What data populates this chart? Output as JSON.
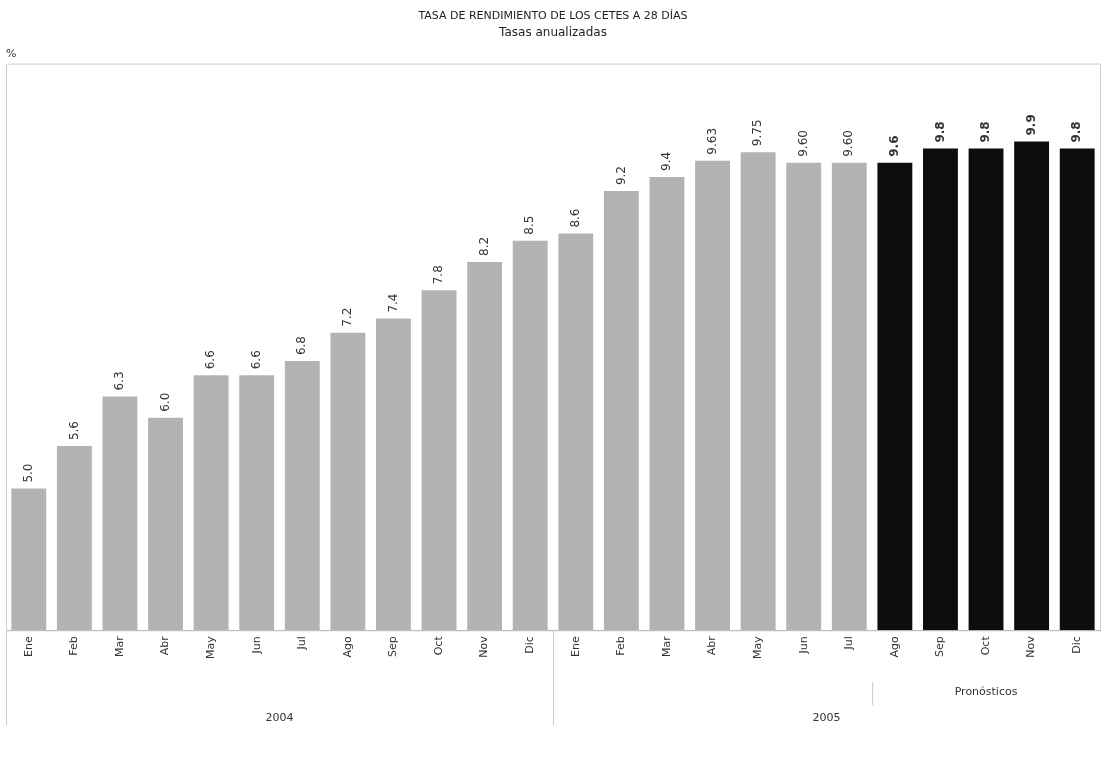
{
  "chart_data": {
    "type": "bar",
    "title": "TASA DE RENDIMIENTO DE LOS CETES A 28 DÍAS",
    "subtitle": "Tasas anualizadas",
    "ylabel": "%",
    "categories": [
      "Ene",
      "Feb",
      "Mar",
      "Abr",
      "May",
      "Jun",
      "Jul",
      "Ago",
      "Sep",
      "Oct",
      "Nov",
      "Dic",
      "Ene",
      "Feb",
      "Mar",
      "Abr",
      "May",
      "Jun",
      "Jul",
      "Ago",
      "Sep",
      "Oct",
      "Nov",
      "Dic"
    ],
    "values": [
      5.0,
      5.6,
      6.3,
      6.0,
      6.6,
      6.6,
      6.8,
      7.2,
      7.4,
      7.8,
      8.2,
      8.5,
      8.6,
      9.2,
      9.4,
      9.63,
      9.75,
      9.6,
      9.6,
      9.6,
      9.8,
      9.8,
      9.9,
      9.8
    ],
    "value_labels": [
      "5.0",
      "5.6",
      "6.3",
      "6.0",
      "6.6",
      "6.6",
      "6.8",
      "7.2",
      "7.4",
      "7.8",
      "8.2",
      "8.5",
      "8.6",
      "9.2",
      "9.4",
      "9.63",
      "9.75",
      "9.60",
      "9.60",
      "9.6",
      "9.8",
      "9.8",
      "9.9",
      "9.8"
    ],
    "colors": [
      "#b3b3b3",
      "#b3b3b3",
      "#b3b3b3",
      "#b3b3b3",
      "#b3b3b3",
      "#b3b3b3",
      "#b3b3b3",
      "#b3b3b3",
      "#b3b3b3",
      "#b3b3b3",
      "#b3b3b3",
      "#b3b3b3",
      "#b3b3b3",
      "#b3b3b3",
      "#b3b3b3",
      "#b3b3b3",
      "#b3b3b3",
      "#b3b3b3",
      "#b3b3b3",
      "#0d0d0d",
      "#0d0d0d",
      "#0d0d0d",
      "#0d0d0d",
      "#0d0d0d"
    ],
    "ylim": [
      3,
      11
    ],
    "tick_labels": "x",
    "grid": false,
    "legend": false,
    "annotations": [
      "2004",
      "2005",
      "Pronósticos"
    ]
  }
}
